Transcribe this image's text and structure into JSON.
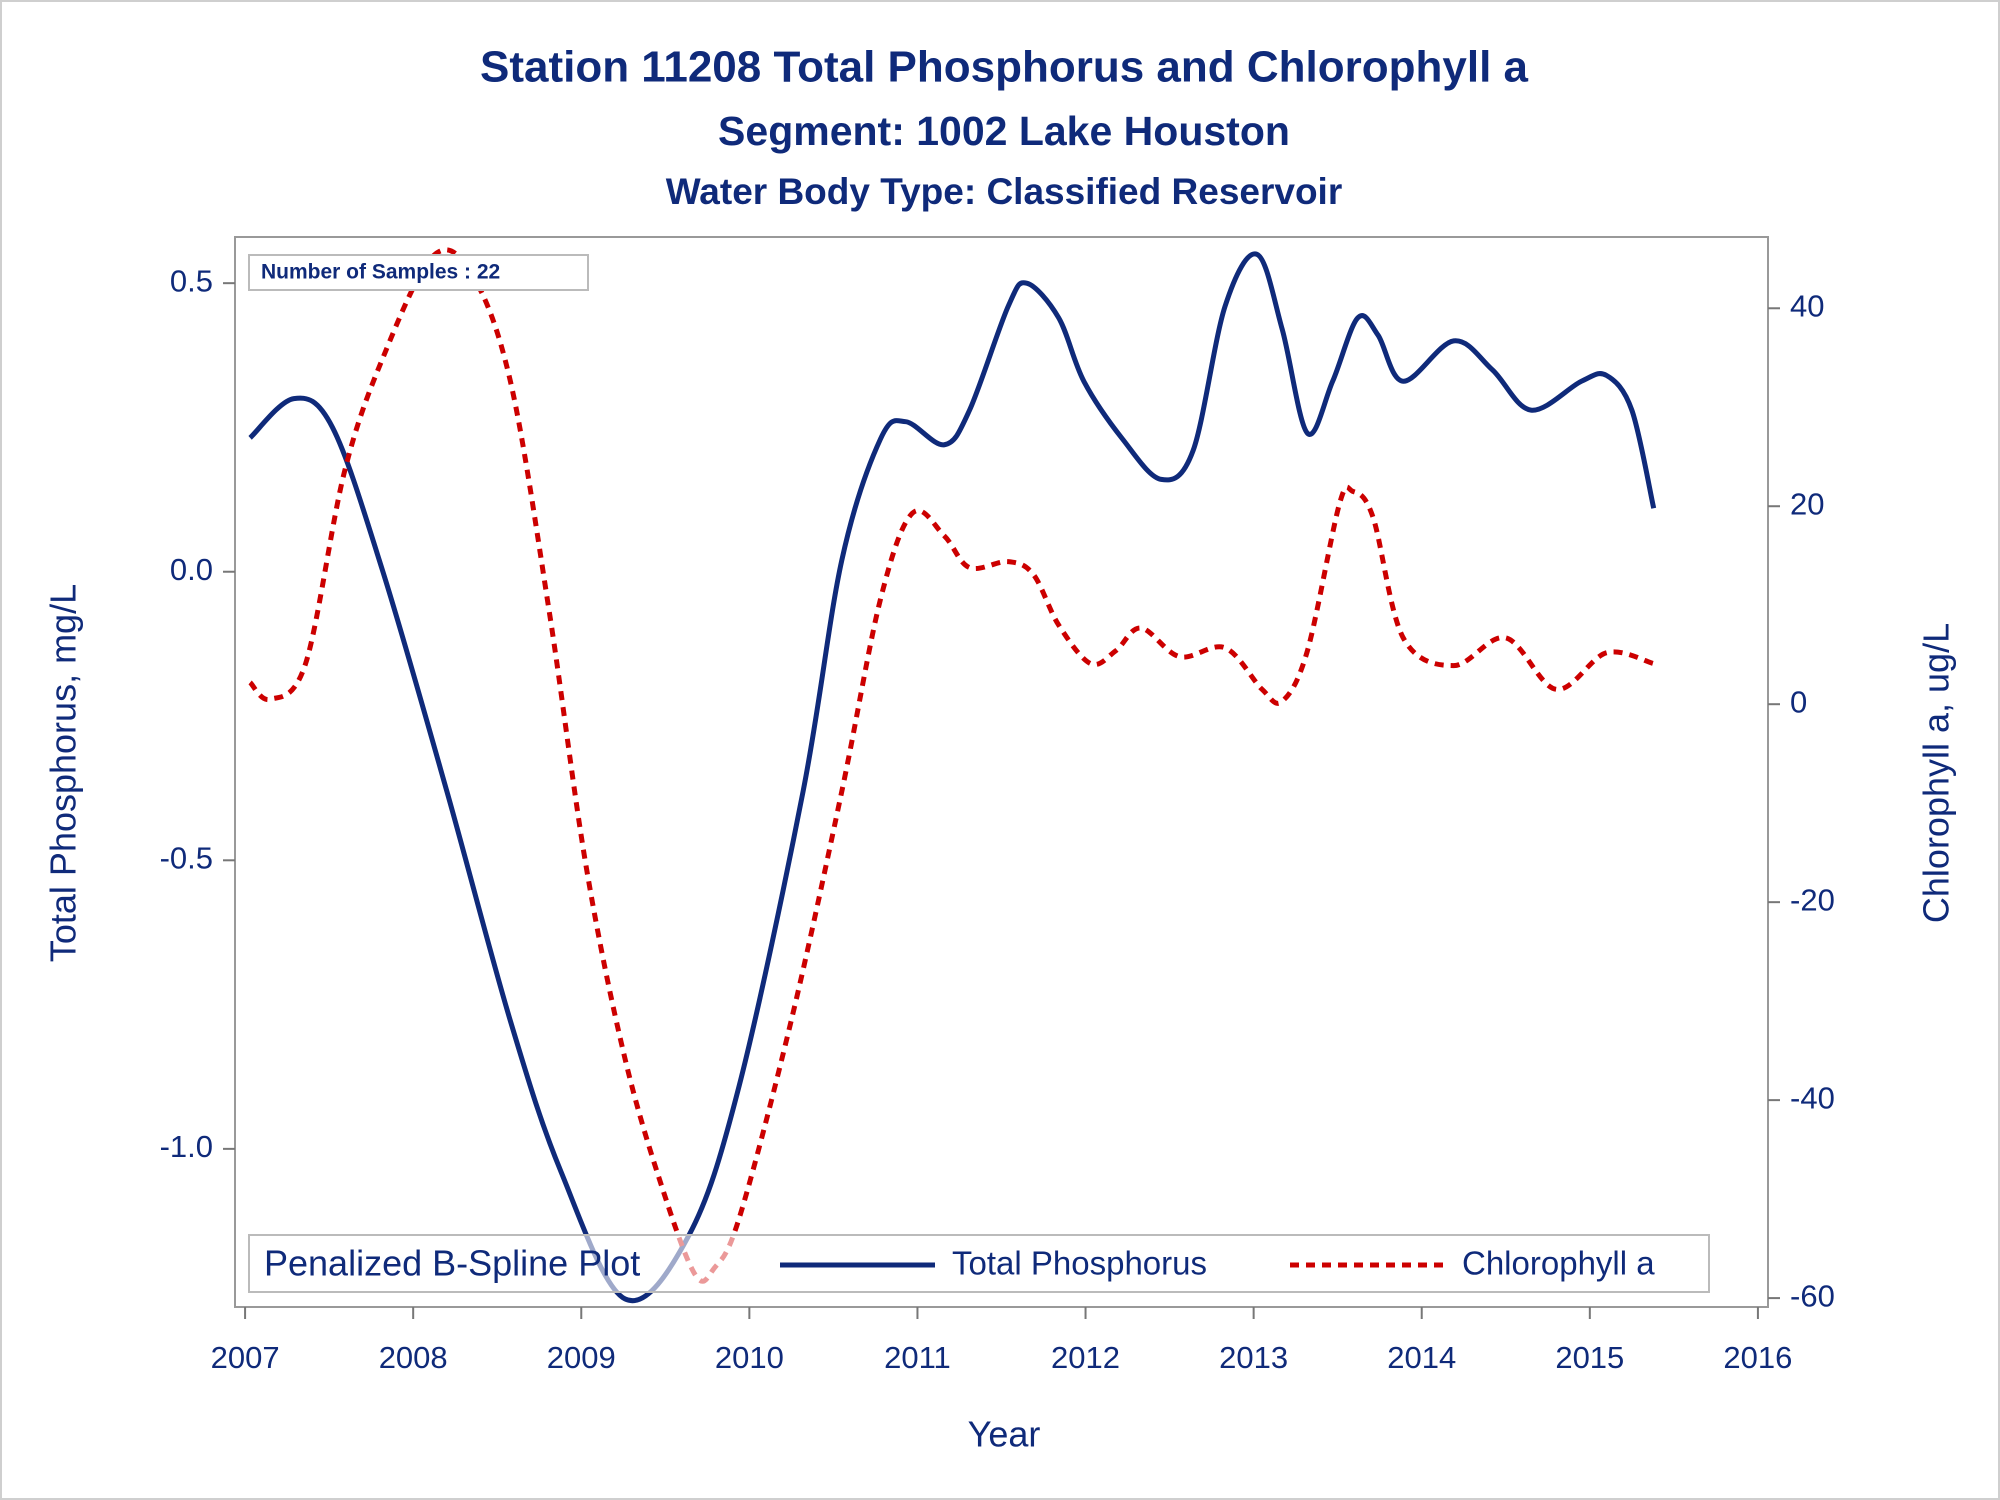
{
  "chart_data": {
    "type": "line",
    "title": "Station 11208  Total Phosphorus and Chlorophyll a",
    "subtitles": [
      "Segment: 1002  Lake Houston",
      "Water Body Type: Classified Reservoir"
    ],
    "xlabel": "Year",
    "ylabel": "Total Phosphorus, mg/L",
    "y2label": "Chlorophyll a, ug/L",
    "annotation": "Number of Samples : 22",
    "legend_title": "Penalized B-Spline Plot",
    "xlim": [
      2006.94,
      2016.06
    ],
    "xticks": [
      2007,
      2008,
      2009,
      2010,
      2011,
      2012,
      2013,
      2014,
      2015,
      2016
    ],
    "ylim": [
      -1.274,
      0.58
    ],
    "yticks": [
      {
        "value": -1.0,
        "label": "-1.0"
      },
      {
        "value": -0.5,
        "label": "-0.5"
      },
      {
        "value": 0.0,
        "label": "0.0"
      },
      0.5
    ],
    "y2lim": [
      -60.9,
      47.2
    ],
    "y2ticks": [
      -60,
      -40,
      -20,
      0,
      20,
      40
    ],
    "series": [
      {
        "name": "Total Phosphorus",
        "color": "#0f2a7a",
        "dash": "solid",
        "x": [
          2007.03,
          2007.29,
          2007.52,
          2007.82,
          2008.2,
          2008.58,
          2008.88,
          2009.26,
          2009.64,
          2009.94,
          2010.32,
          2010.55,
          2010.78,
          2010.93,
          2011.16,
          2011.31,
          2011.54,
          2011.65,
          2011.84,
          2011.99,
          2012.22,
          2012.45,
          2012.64,
          2012.83,
          2013.02,
          2013.17,
          2013.32,
          2013.47,
          2013.62,
          2013.74,
          2013.89,
          2014.19,
          2014.42,
          2014.65,
          2014.95,
          2015.1,
          2015.25,
          2015.38
        ],
        "values": [
          0.232,
          0.3,
          0.25,
          0.0,
          -0.38,
          -0.78,
          -1.04,
          -1.26,
          -1.15,
          -0.89,
          -0.38,
          0.02,
          0.23,
          0.26,
          0.22,
          0.28,
          0.46,
          0.5,
          0.44,
          0.33,
          0.23,
          0.16,
          0.21,
          0.46,
          0.55,
          0.42,
          0.24,
          0.33,
          0.44,
          0.41,
          0.33,
          0.4,
          0.35,
          0.28,
          0.33,
          0.34,
          0.28,
          0.11
        ]
      },
      {
        "name": "Chlorophyll a",
        "color": "#cc0000",
        "dash": "dashed",
        "axis": "y2",
        "x": [
          2007.03,
          2007.15,
          2007.36,
          2007.59,
          2007.82,
          2008.12,
          2008.35,
          2008.58,
          2008.81,
          2009.03,
          2009.26,
          2009.49,
          2009.68,
          2009.79,
          2009.94,
          2010.25,
          2010.55,
          2010.78,
          2010.97,
          2011.16,
          2011.31,
          2011.54,
          2011.69,
          2011.84,
          2012.03,
          2012.18,
          2012.33,
          2012.56,
          2012.83,
          2013.05,
          2013.17,
          2013.32,
          2013.51,
          2013.59,
          2013.71,
          2013.89,
          2014.19,
          2014.5,
          2014.8,
          2015.1,
          2015.38
        ],
        "values": [
          2.2,
          0.5,
          4.1,
          23.4,
          35,
          45.3,
          43.4,
          32.5,
          9.3,
          -16.5,
          -35.8,
          -49.3,
          -57.7,
          -57,
          -51.9,
          -31.9,
          -8.8,
          10.6,
          19.3,
          17,
          13.8,
          14.4,
          13.1,
          8,
          4.1,
          5.4,
          7.7,
          4.8,
          5.7,
          1.5,
          0.3,
          5.4,
          20.2,
          21.5,
          18.9,
          6.7,
          3.9,
          6.7,
          1.5,
          5.2,
          4.1
        ]
      }
    ]
  }
}
